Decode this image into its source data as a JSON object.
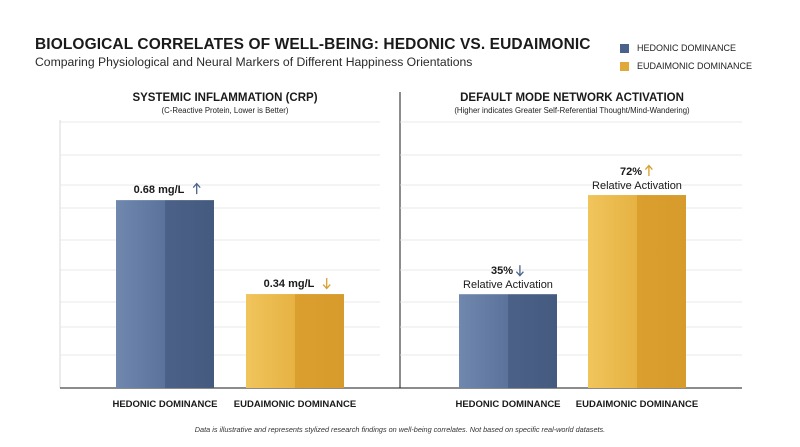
{
  "header": {
    "title": "BIOLOGICAL CORRELATES OF WELL-BEING: HEDONIC VS. EUDAIMONIC",
    "subtitle": "Comparing Physiological and Neural Markers of Different Happiness Orientations"
  },
  "legend": [
    {
      "label": "HEDONIC DOMINANCE",
      "color": "#4a6289"
    },
    {
      "label": "EUDAIMONIC DOMINANCE",
      "color": "#e0a93a"
    }
  ],
  "footnote": "Data is illustrative and represents stylized research findings on well-being correlates. Not based on specific real-world datasets.",
  "colors": {
    "hedonic_light": "#6f87ad",
    "hedonic_dark": "#475d82",
    "eudaimonic_light": "#eebf52",
    "eudaimonic_dark": "#d89f2e",
    "arrow_up_blue": "#4a6289",
    "arrow_orange": "#d89f2e"
  },
  "chart_data": [
    {
      "type": "bar",
      "title": "SYSTEMIC INFLAMMATION (CRP)",
      "subtitle": "(C-Reactive Protein, Lower is Better)",
      "categories": [
        "HEDONIC DOMINANCE",
        "EUDAIMONIC DOMINANCE"
      ],
      "values": [
        0.68,
        0.34
      ],
      "value_labels": [
        "0.68 mg/L",
        "0.34 mg/L"
      ],
      "value_sublabels": [
        "",
        ""
      ],
      "arrows": [
        "up",
        "down"
      ],
      "unit": "mg/L",
      "ylim": [
        0,
        0.97
      ],
      "grid": true
    },
    {
      "type": "bar",
      "title": "DEFAULT MODE NETWORK ACTIVATION",
      "subtitle": "(Higher indicates Greater Self-Referential Thought/Mind-Wandering)",
      "categories": [
        "HEDONIC DOMINANCE",
        "EUDAIMONIC DOMINANCE"
      ],
      "values": [
        35,
        72
      ],
      "value_labels": [
        "35%",
        "72%"
      ],
      "value_sublabels": [
        "Relative Activation",
        "Relative Activation"
      ],
      "arrows": [
        "down",
        "up"
      ],
      "unit": "%",
      "ylim": [
        0,
        100
      ],
      "grid": true
    }
  ]
}
